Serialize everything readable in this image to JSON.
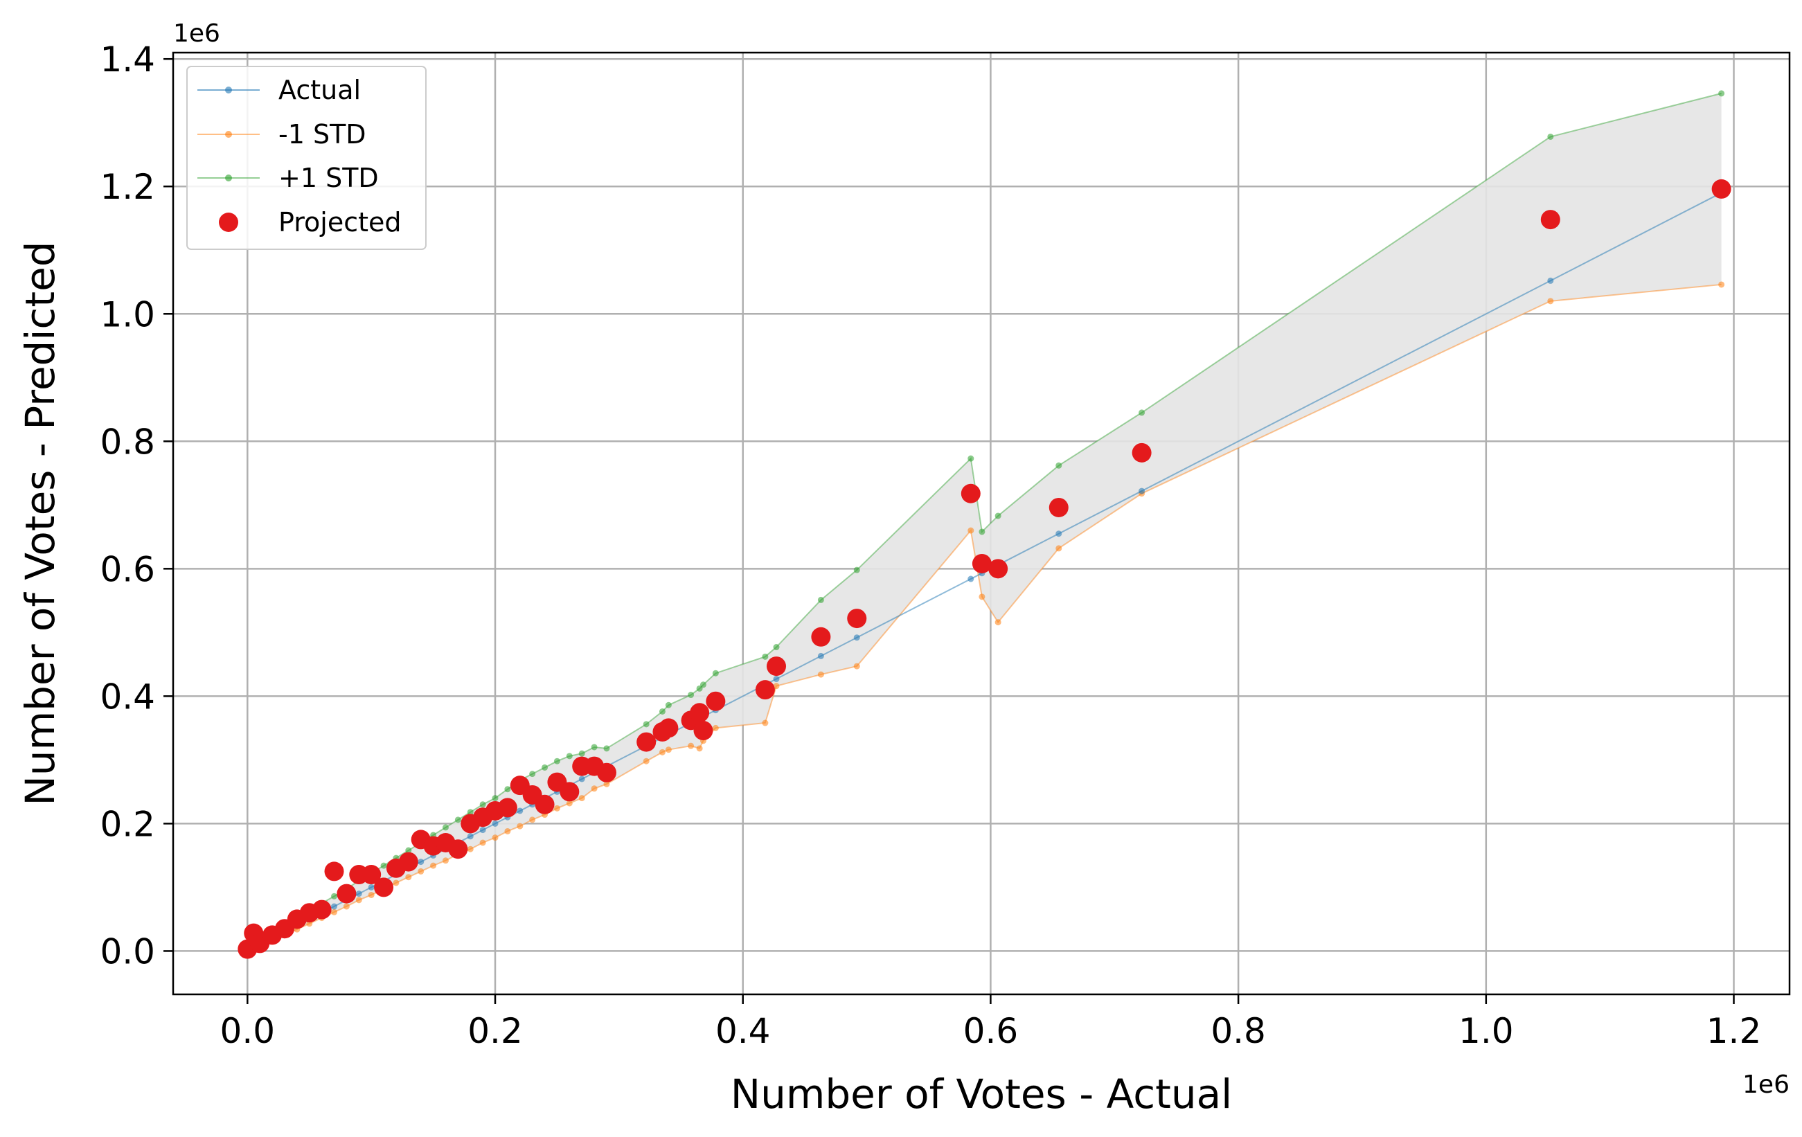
{
  "chart_data": {
    "type": "scatter",
    "title": "",
    "xlabel": "Number of Votes - Actual",
    "ylabel": "Number of Votes - Predicted",
    "x_offset_label": "1e6",
    "y_offset_label": "1e6",
    "xlim": [
      -0.06,
      1.245
    ],
    "ylim": [
      -0.068,
      1.41
    ],
    "x_ticks": [
      0.0,
      0.2,
      0.4,
      0.6,
      0.8,
      1.0,
      1.2
    ],
    "x_tick_labels": [
      "0.0",
      "0.2",
      "0.4",
      "0.6",
      "0.8",
      "1.0",
      "1.2"
    ],
    "y_ticks": [
      0.0,
      0.2,
      0.4,
      0.6,
      0.8,
      1.0,
      1.2,
      1.4
    ],
    "y_tick_labels": [
      "0.0",
      "0.2",
      "0.4",
      "0.6",
      "0.8",
      "1.0",
      "1.2",
      "1.4"
    ],
    "grid": true,
    "legend_position": "top-left",
    "colors": {
      "actual": "#1f77b4",
      "minus_std": "#ff7f0e",
      "plus_std": "#2ca02c",
      "projected": "#e41a1c",
      "band": "#e4e4e4"
    },
    "x": [
      0.0,
      0.005,
      0.01,
      0.02,
      0.03,
      0.04,
      0.05,
      0.06,
      0.07,
      0.08,
      0.09,
      0.1,
      0.11,
      0.12,
      0.13,
      0.14,
      0.15,
      0.16,
      0.17,
      0.18,
      0.19,
      0.2,
      0.21,
      0.22,
      0.23,
      0.24,
      0.25,
      0.26,
      0.27,
      0.28,
      0.29,
      0.322,
      0.335,
      0.34,
      0.358,
      0.365,
      0.368,
      0.378,
      0.418,
      0.427,
      0.463,
      0.492,
      0.584,
      0.593,
      0.606,
      0.655,
      0.722,
      1.052,
      1.19
    ],
    "series": [
      {
        "name": "Actual",
        "values": [
          0.0,
          0.005,
          0.01,
          0.02,
          0.03,
          0.04,
          0.05,
          0.06,
          0.07,
          0.08,
          0.09,
          0.1,
          0.11,
          0.12,
          0.13,
          0.14,
          0.15,
          0.16,
          0.17,
          0.18,
          0.19,
          0.2,
          0.21,
          0.22,
          0.23,
          0.24,
          0.25,
          0.26,
          0.27,
          0.28,
          0.29,
          0.322,
          0.335,
          0.34,
          0.358,
          0.365,
          0.368,
          0.378,
          0.418,
          0.427,
          0.463,
          0.492,
          0.584,
          0.593,
          0.606,
          0.655,
          0.722,
          1.052,
          1.19
        ]
      },
      {
        "name": "-1 STD",
        "values": [
          0.0,
          0.004,
          0.008,
          0.016,
          0.025,
          0.034,
          0.043,
          0.052,
          0.061,
          0.07,
          0.08,
          0.088,
          0.097,
          0.107,
          0.116,
          0.125,
          0.134,
          0.142,
          0.152,
          0.16,
          0.17,
          0.178,
          0.188,
          0.196,
          0.206,
          0.214,
          0.224,
          0.232,
          0.24,
          0.255,
          0.262,
          0.298,
          0.312,
          0.316,
          0.322,
          0.318,
          0.33,
          0.35,
          0.358,
          0.416,
          0.434,
          0.447,
          0.66,
          0.556,
          0.516,
          0.632,
          0.718,
          1.02,
          1.046
        ]
      },
      {
        "name": "+1 STD",
        "values": [
          0.0,
          0.006,
          0.013,
          0.025,
          0.038,
          0.05,
          0.062,
          0.075,
          0.086,
          0.098,
          0.11,
          0.122,
          0.134,
          0.146,
          0.158,
          0.17,
          0.182,
          0.194,
          0.206,
          0.218,
          0.23,
          0.24,
          0.254,
          0.268,
          0.278,
          0.288,
          0.298,
          0.306,
          0.31,
          0.32,
          0.318,
          0.356,
          0.376,
          0.386,
          0.402,
          0.412,
          0.418,
          0.436,
          0.462,
          0.477,
          0.551,
          0.598,
          0.773,
          0.658,
          0.683,
          0.762,
          0.845,
          1.278,
          1.346
        ]
      },
      {
        "name": "Projected",
        "values": [
          0.003,
          0.028,
          0.012,
          0.025,
          0.035,
          0.05,
          0.06,
          0.065,
          0.125,
          0.09,
          0.12,
          0.12,
          0.1,
          0.13,
          0.14,
          0.175,
          0.165,
          0.17,
          0.16,
          0.2,
          0.21,
          0.22,
          0.225,
          0.26,
          0.245,
          0.23,
          0.265,
          0.25,
          0.29,
          0.29,
          0.28,
          0.328,
          0.344,
          0.35,
          0.362,
          0.374,
          0.346,
          0.392,
          0.41,
          0.447,
          0.493,
          0.522,
          0.718,
          0.608,
          0.6,
          0.696,
          0.782,
          1.148,
          1.196
        ]
      }
    ]
  }
}
